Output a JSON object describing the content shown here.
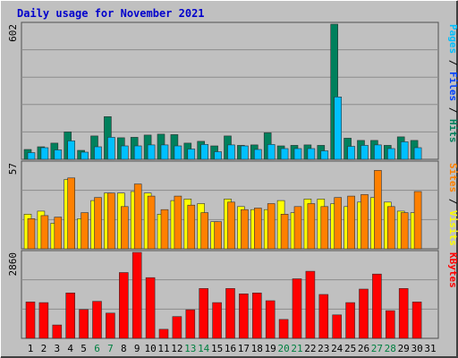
{
  "chart_data": {
    "type": "bar",
    "title": "Daily usage for November 2021",
    "categories": [
      "1",
      "2",
      "3",
      "4",
      "5",
      "6",
      "7",
      "8",
      "9",
      "10",
      "11",
      "12",
      "13",
      "14",
      "15",
      "16",
      "17",
      "18",
      "19",
      "20",
      "21",
      "22",
      "23",
      "24",
      "25",
      "26",
      "27",
      "28",
      "29",
      "30",
      "31"
    ],
    "weekend_days": [
      "6",
      "7",
      "13",
      "14",
      "20",
      "21",
      "27",
      "28"
    ],
    "panels": [
      {
        "id": "pages-files-hits",
        "ymax_label": "602",
        "ymax": 602,
        "legend": [
          {
            "name": "Pages",
            "color": "#00c0ff"
          },
          {
            "name": "Files",
            "color": "#0040ff"
          },
          {
            "name": "Hits",
            "color": "#00805c"
          }
        ],
        "series": [
          {
            "name": "Hits",
            "color": "#00805c",
            "values": [
              44,
              56,
              72,
              122,
              40,
              104,
              190,
              96,
              98,
              108,
              112,
              110,
              72,
              80,
              60,
              104,
              62,
              64,
              118,
              60,
              62,
              64,
              62,
              602,
              94,
              84,
              84,
              62,
              100,
              84,
              null
            ]
          },
          {
            "name": "Pages",
            "color": "#00c0ff",
            "values": [
              30,
              52,
              42,
              82,
              32,
              56,
              98,
              60,
              60,
              64,
              64,
              60,
              46,
              66,
              34,
              64,
              60,
              44,
              66,
              48,
              48,
              48,
              38,
              278,
              58,
              62,
              64,
              48,
              78,
              52,
              null
            ]
          }
        ]
      },
      {
        "id": "sites-visits",
        "ymax_label": "57",
        "ymax": 57,
        "legend": [
          {
            "name": "Sites",
            "color": "#ff8000"
          },
          {
            "name": "Visits",
            "color": "#ffff00"
          }
        ],
        "series": [
          {
            "name": "Visits",
            "color": "#ffff00",
            "values": [
              23,
              25,
              17,
              46,
              20,
              32,
              37,
              37,
              38,
              37,
              23,
              32,
              33,
              30,
              18,
              33,
              28,
              26,
              26,
              32,
              24,
              33,
              33,
              30,
              28,
              31,
              34,
              31,
              25,
              24,
              null
            ]
          },
          {
            "name": "Sites",
            "color": "#ff8000",
            "values": [
              20,
              22,
              21,
              47,
              24,
              34,
              37,
              28,
              43,
              35,
              26,
              35,
              29,
              24,
              18,
              31,
              26,
              27,
              30,
              23,
              28,
              30,
              28,
              34,
              35,
              36,
              52,
              28,
              24,
              38,
              null
            ]
          }
        ]
      },
      {
        "id": "kbytes",
        "ymax_label": "2860",
        "ymax": 2860,
        "legend": [
          {
            "name": "KBytes",
            "color": "#ff0000"
          }
        ],
        "series": [
          {
            "name": "KBytes",
            "color": "#ff0000",
            "values": [
              1210,
              1190,
              445,
              1510,
              960,
              1230,
              840,
              2190,
              2860,
              2020,
              300,
              725,
              950,
              1660,
              1190,
              1660,
              1480,
              1510,
              1250,
              630,
              1980,
              2230,
              1460,
              780,
              1190,
              1640,
              2140,
              920,
              1660,
              1210,
              null
            ]
          }
        ]
      }
    ]
  }
}
